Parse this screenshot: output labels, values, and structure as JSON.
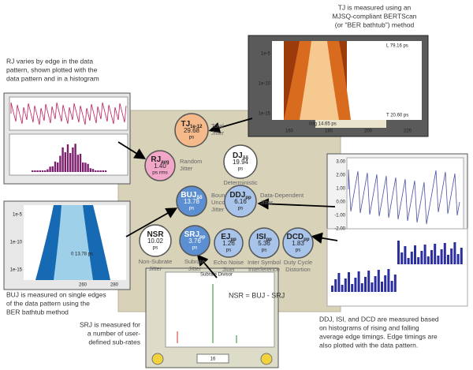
{
  "annotations": {
    "tj": [
      "TJ is measured using an",
      "MJSQ-compliant BERTScan",
      "(or \"BER bathtub\") method"
    ],
    "rj": [
      "RJ varies by edge in the data",
      "pattern, shown plotted with the",
      "data pattern and in a histogram"
    ],
    "buj": [
      "BUJ is measured on  single edges",
      "of the data pattern using the",
      "BER bathtub method"
    ],
    "srj": [
      "SRJ is  measured for",
      "a number of user-",
      "defined sub-rates"
    ],
    "ddj": [
      "DDJ, ISI, and DCD are measured based",
      "on histograms of rising and falling",
      "average edge timings. Edge timings are",
      "also plotted with the data pattern."
    ]
  },
  "nodes": [
    {
      "symbol": "TJ",
      "sub": "1e-12",
      "value": "29.68",
      "unit": "ps",
      "label": [
        "Total",
        "Jitter"
      ]
    },
    {
      "symbol": "RJ",
      "sub": "avg",
      "value": "1.40",
      "unit": "ps rms",
      "label": [
        "Random",
        "Jitter"
      ]
    },
    {
      "symbol": "DJ",
      "sub": "δδ",
      "value": "19.94",
      "unit": "ps",
      "label": [
        "Deterministic",
        "Jitter"
      ]
    },
    {
      "symbol": "BUJ",
      "sub": "δδ",
      "value": "13.78",
      "unit": "ps",
      "label": [
        "Bounded",
        "Uncorrelated",
        "Jitter"
      ]
    },
    {
      "symbol": "DDJ",
      "sub": "pp",
      "value": "6.16",
      "unit": "ps",
      "label": [
        "Data-Dependent",
        "Jitter"
      ]
    },
    {
      "symbol": "NSR",
      "value": "10.02",
      "unit": "ps",
      "label": [
        "Non-Subrate",
        "Jitter"
      ]
    },
    {
      "symbol": "SRJ",
      "sub": "pp",
      "value": "3.76",
      "unit": "ps",
      "label": [
        "Subrate",
        "Jitter"
      ]
    },
    {
      "symbol": "EJ",
      "sub": "pp",
      "value": "1.26",
      "unit": "ps",
      "label": [
        "Echo Noise",
        "Jitter"
      ]
    },
    {
      "symbol": "ISI",
      "sub": "pp",
      "value": "5.36",
      "unit": "ps",
      "label": [
        "Inter Symbol",
        "Interference"
      ]
    },
    {
      "symbol": "DCD",
      "sub": "pp",
      "value": "1.83",
      "unit": "ps",
      "label": [
        "Duty Cycle",
        "Distortion"
      ]
    }
  ],
  "formula": "NSR = BUJ - SRJ",
  "insets": {
    "tj": {
      "yticks": [
        "1e-5",
        "1e-10",
        "1e-15"
      ],
      "xticks": [
        "160",
        "180",
        "200",
        "220"
      ],
      "readouts": [
        "L 79.16 ps",
        "0dg 14.65 ps",
        "T 20.60 ps"
      ]
    },
    "buj": {
      "yticks": [
        "1e-5",
        "1e-10",
        "1e-15"
      ],
      "xticks": [
        "260",
        "280"
      ],
      "readouts": [
        "0 13.78 ps"
      ]
    },
    "ddj": {
      "yticks": [
        "3.00",
        "2.00",
        "1.00",
        "0.00",
        "-1.00",
        "-2.00"
      ]
    },
    "subrate": {
      "title": "Subrate Divisor",
      "value": "16"
    }
  }
}
